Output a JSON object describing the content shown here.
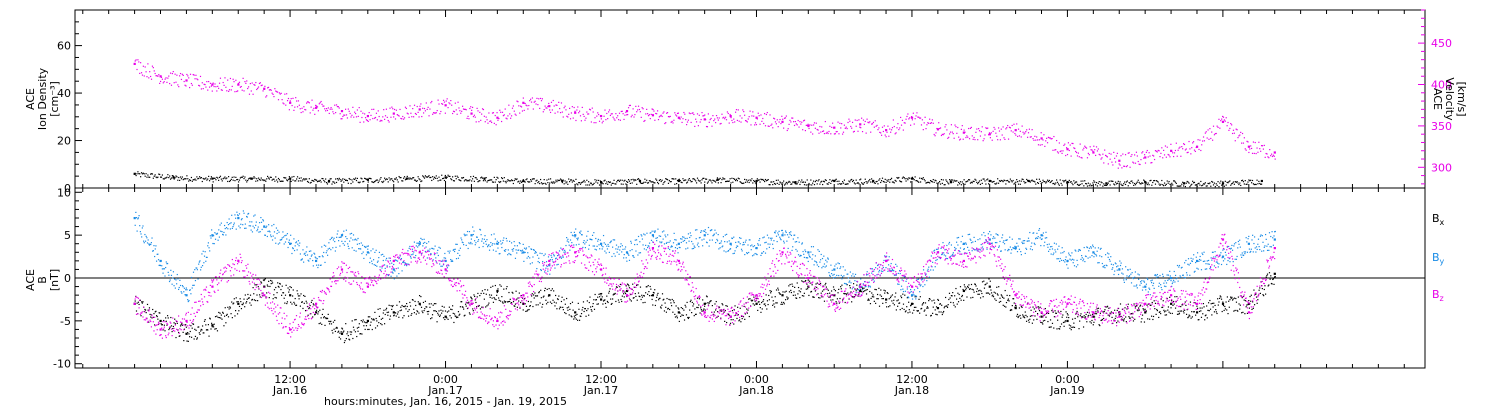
{
  "chart_data": [
    {
      "type": "scatter",
      "panel": "top",
      "left_axis": {
        "title_lines": [
          "ACE",
          "Ion Density",
          "[cm⁻³]"
        ],
        "ticks": [
          0,
          20,
          40,
          60
        ],
        "ylim": [
          0,
          75
        ]
      },
      "right_axis": {
        "title_lines": [
          "ACE",
          "Velocity",
          "[km/s]"
        ],
        "ticks": [
          300,
          350,
          400,
          450
        ],
        "ylim": [
          275,
          490
        ],
        "color": "#e800e8"
      },
      "series": [
        {
          "color": "#000000",
          "axis": "left",
          "points": [
            [
              0.0,
              6.0
            ],
            [
              3.0,
              4.5
            ],
            [
              6.0,
              4.0
            ],
            [
              9.0,
              4.0
            ],
            [
              12.0,
              4.0
            ],
            [
              15.0,
              3.0
            ],
            [
              18.0,
              3.5
            ],
            [
              21.0,
              4.0
            ],
            [
              24.0,
              4.5
            ],
            [
              27.0,
              4.0
            ],
            [
              30.0,
              3.0
            ],
            [
              33.0,
              3.0
            ],
            [
              36.0,
              2.5
            ],
            [
              39.0,
              3.0
            ],
            [
              42.0,
              3.0
            ],
            [
              45.0,
              3.5
            ],
            [
              48.0,
              3.0
            ],
            [
              51.0,
              2.5
            ],
            [
              54.0,
              3.0
            ],
            [
              57.0,
              3.0
            ],
            [
              60.0,
              4.0
            ],
            [
              63.0,
              2.5
            ],
            [
              66.0,
              3.0
            ],
            [
              69.0,
              3.0
            ],
            [
              72.0,
              2.5
            ],
            [
              75.0,
              2.0
            ],
            [
              78.0,
              2.5
            ],
            [
              81.0,
              2.0
            ],
            [
              84.0,
              2.0
            ],
            [
              87.0,
              3.0
            ]
          ]
        },
        {
          "color": "#e800e8",
          "axis": "right",
          "points": [
            [
              0.0,
              425
            ],
            [
              2.0,
              410
            ],
            [
              4.0,
              405
            ],
            [
              6.0,
              400
            ],
            [
              8.0,
              400
            ],
            [
              10.0,
              395
            ],
            [
              12.0,
              378
            ],
            [
              14.0,
              372
            ],
            [
              16.0,
              368
            ],
            [
              18.0,
              362
            ],
            [
              20.0,
              365
            ],
            [
              22.0,
              370
            ],
            [
              24.0,
              375
            ],
            [
              26.0,
              365
            ],
            [
              28.0,
              360
            ],
            [
              30.0,
              378
            ],
            [
              32.0,
              374
            ],
            [
              34.0,
              366
            ],
            [
              36.0,
              362
            ],
            [
              38.0,
              368
            ],
            [
              40.0,
              363
            ],
            [
              42.0,
              360
            ],
            [
              44.0,
              358
            ],
            [
              46.0,
              362
            ],
            [
              48.0,
              360
            ],
            [
              50.0,
              355
            ],
            [
              52.0,
              350
            ],
            [
              54.0,
              348
            ],
            [
              56.0,
              352
            ],
            [
              58.0,
              345
            ],
            [
              60.0,
              360
            ],
            [
              62.0,
              346
            ],
            [
              64.0,
              342
            ],
            [
              66.0,
              340
            ],
            [
              68.0,
              345
            ],
            [
              70.0,
              335
            ],
            [
              72.0,
              322
            ],
            [
              74.0,
              318
            ],
            [
              76.0,
              308
            ],
            [
              78.0,
              312
            ],
            [
              80.0,
              320
            ],
            [
              82.0,
              325
            ],
            [
              84.0,
              355
            ],
            [
              86.0,
              325
            ],
            [
              88.0,
              318
            ]
          ]
        }
      ]
    },
    {
      "type": "scatter",
      "panel": "bottom",
      "left_axis": {
        "title_lines": [
          "ACE",
          "B",
          "[nT]"
        ],
        "ticks": [
          -10,
          -5,
          0,
          5,
          10
        ],
        "ylim": [
          -10.5,
          10.5
        ]
      },
      "zero_line": true,
      "legend_position": "right",
      "series": [
        {
          "name": "B",
          "subscript": "x",
          "color": "#000000",
          "points": [
            [
              0.0,
              -3.0
            ],
            [
              2.0,
              -5.0
            ],
            [
              4.0,
              -6.5
            ],
            [
              6.0,
              -5.5
            ],
            [
              8.0,
              -3.0
            ],
            [
              10.0,
              -1.0
            ],
            [
              12.0,
              -2.0
            ],
            [
              14.0,
              -4.0
            ],
            [
              16.0,
              -6.5
            ],
            [
              18.0,
              -5.0
            ],
            [
              20.0,
              -4.0
            ],
            [
              22.0,
              -3.0
            ],
            [
              24.0,
              -4.5
            ],
            [
              26.0,
              -3.0
            ],
            [
              28.0,
              -1.5
            ],
            [
              30.0,
              -3.0
            ],
            [
              32.0,
              -2.0
            ],
            [
              34.0,
              -4.0
            ],
            [
              36.0,
              -2.5
            ],
            [
              38.0,
              -1.5
            ],
            [
              40.0,
              -2.0
            ],
            [
              42.0,
              -4.0
            ],
            [
              44.0,
              -3.0
            ],
            [
              46.0,
              -4.5
            ],
            [
              48.0,
              -3.0
            ],
            [
              50.0,
              -2.0
            ],
            [
              52.0,
              -1.0
            ],
            [
              54.0,
              -2.0
            ],
            [
              56.0,
              -1.5
            ],
            [
              58.0,
              -2.5
            ],
            [
              60.0,
              -3.0
            ],
            [
              62.0,
              -3.5
            ],
            [
              64.0,
              -1.5
            ],
            [
              66.0,
              -1.0
            ],
            [
              68.0,
              -3.5
            ],
            [
              70.0,
              -4.5
            ],
            [
              72.0,
              -5.0
            ],
            [
              74.0,
              -4.5
            ],
            [
              76.0,
              -4.0
            ],
            [
              78.0,
              -4.0
            ],
            [
              80.0,
              -3.0
            ],
            [
              82.0,
              -4.0
            ],
            [
              84.0,
              -3.0
            ],
            [
              86.0,
              -3.0
            ],
            [
              88.0,
              0.5
            ]
          ]
        },
        {
          "name": "B",
          "subscript": "y",
          "color": "#1a8ce6",
          "points": [
            [
              0.0,
              7.0
            ],
            [
              2.0,
              2.0
            ],
            [
              4.0,
              -2.0
            ],
            [
              6.0,
              5.0
            ],
            [
              8.0,
              7.0
            ],
            [
              10.0,
              6.0
            ],
            [
              12.0,
              4.0
            ],
            [
              14.0,
              2.0
            ],
            [
              16.0,
              5.0
            ],
            [
              18.0,
              3.0
            ],
            [
              20.0,
              1.0
            ],
            [
              22.0,
              4.0
            ],
            [
              24.0,
              2.0
            ],
            [
              26.0,
              5.0
            ],
            [
              28.0,
              4.0
            ],
            [
              30.0,
              3.0
            ],
            [
              32.0,
              1.5
            ],
            [
              34.0,
              5.0
            ],
            [
              36.0,
              4.0
            ],
            [
              38.0,
              3.0
            ],
            [
              40.0,
              5.0
            ],
            [
              42.0,
              4.0
            ],
            [
              44.0,
              5.0
            ],
            [
              46.0,
              4.0
            ],
            [
              48.0,
              3.5
            ],
            [
              50.0,
              5.0
            ],
            [
              52.0,
              3.0
            ],
            [
              54.0,
              1.0
            ],
            [
              56.0,
              -1.0
            ],
            [
              58.0,
              2.0
            ],
            [
              60.0,
              -2.0
            ],
            [
              62.0,
              3.0
            ],
            [
              64.0,
              4.0
            ],
            [
              66.0,
              4.5
            ],
            [
              68.0,
              3.5
            ],
            [
              70.0,
              5.0
            ],
            [
              72.0,
              2.0
            ],
            [
              74.0,
              3.0
            ],
            [
              76.0,
              1.0
            ],
            [
              78.0,
              -1.0
            ],
            [
              80.0,
              0.0
            ],
            [
              82.0,
              2.0
            ],
            [
              84.0,
              2.5
            ],
            [
              86.0,
              4.0
            ],
            [
              88.0,
              4.5
            ]
          ]
        },
        {
          "name": "B",
          "subscript": "z",
          "color": "#e800e8",
          "points": [
            [
              0.0,
              -3.0
            ],
            [
              2.0,
              -6.0
            ],
            [
              4.0,
              -5.0
            ],
            [
              6.0,
              -1.0
            ],
            [
              8.0,
              2.0
            ],
            [
              10.0,
              -2.0
            ],
            [
              12.0,
              -6.0
            ],
            [
              14.0,
              -3.0
            ],
            [
              16.0,
              1.0
            ],
            [
              18.0,
              -1.0
            ],
            [
              20.0,
              2.0
            ],
            [
              22.0,
              3.0
            ],
            [
              24.0,
              1.0
            ],
            [
              26.0,
              -3.0
            ],
            [
              28.0,
              -5.0
            ],
            [
              30.0,
              -2.0
            ],
            [
              32.0,
              2.0
            ],
            [
              34.0,
              3.0
            ],
            [
              36.0,
              1.0
            ],
            [
              38.0,
              -2.0
            ],
            [
              40.0,
              3.5
            ],
            [
              42.0,
              2.0
            ],
            [
              44.0,
              -4.0
            ],
            [
              46.0,
              -4.5
            ],
            [
              48.0,
              -2.0
            ],
            [
              50.0,
              3.0
            ],
            [
              52.0,
              0.0
            ],
            [
              54.0,
              -3.0
            ],
            [
              56.0,
              -1.0
            ],
            [
              58.0,
              2.0
            ],
            [
              60.0,
              -1.0
            ],
            [
              62.0,
              3.0
            ],
            [
              64.0,
              2.0
            ],
            [
              66.0,
              4.0
            ],
            [
              68.0,
              -2.0
            ],
            [
              70.0,
              -4.0
            ],
            [
              72.0,
              -3.0
            ],
            [
              74.0,
              -4.0
            ],
            [
              76.0,
              -4.5
            ],
            [
              78.0,
              -3.0
            ],
            [
              80.0,
              -2.0
            ],
            [
              82.0,
              -3.0
            ],
            [
              84.0,
              4.5
            ],
            [
              86.0,
              -4.0
            ],
            [
              88.0,
              3.5
            ]
          ]
        }
      ]
    }
  ],
  "x_axis": {
    "xlim": [
      -4.6,
      99.6
    ],
    "major_ticks": [
      12,
      24,
      36,
      48,
      60,
      72,
      84
    ],
    "minor_step": 2,
    "time_labels": [
      "12:00",
      "0:00",
      "12:00",
      "0:00",
      "12:00",
      "0:00"
    ],
    "time_label_hours": [
      12,
      24,
      36,
      48,
      60,
      72
    ],
    "date_labels": [
      "Jan.16",
      "Jan.17",
      "Jan.17",
      "Jan.18",
      "Jan.18",
      "Jan.19"
    ],
    "date_label_hours": [
      12,
      24,
      36,
      48,
      60,
      72
    ],
    "title": "hours:minutes, Jan. 16, 2015 - Jan. 19, 2015"
  }
}
